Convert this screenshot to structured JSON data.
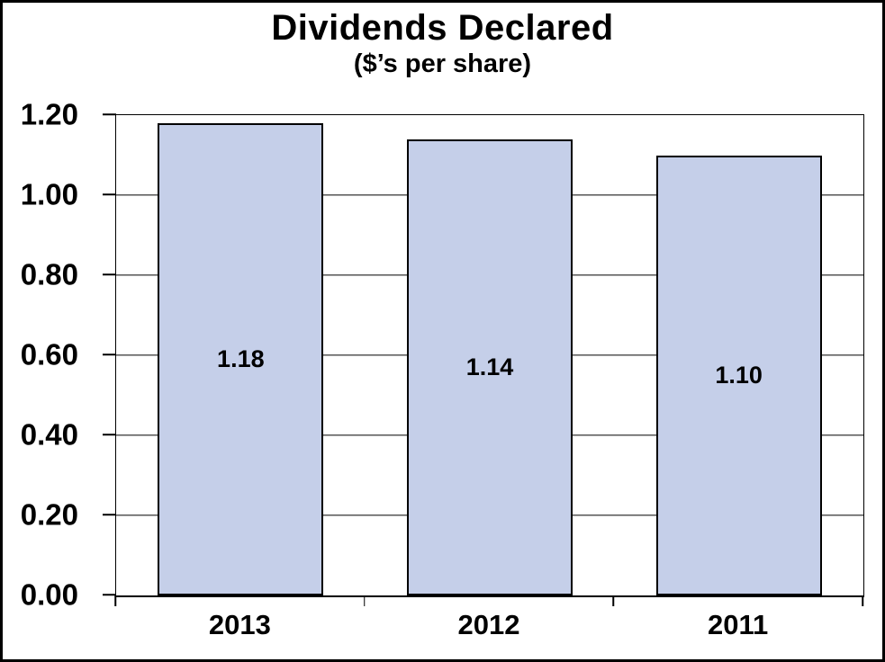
{
  "chart_data": {
    "type": "bar",
    "title": "Dividends Declared",
    "subtitle": "($’s per share)",
    "categories": [
      "2013",
      "2012",
      "2011"
    ],
    "values": [
      1.18,
      1.14,
      1.1
    ],
    "bar_labels": [
      "1.18",
      "1.14",
      "1.10"
    ],
    "xlabel": "",
    "ylabel": "",
    "ylim": [
      0.0,
      1.2
    ],
    "yticks": [
      1.2,
      1.0,
      0.8,
      0.6,
      0.4,
      0.2,
      0.0
    ],
    "ytick_labels": [
      "1.20",
      "1.00",
      "0.80",
      "0.60",
      "0.40",
      "0.20",
      "0.00"
    ],
    "grid": "horizontal-on",
    "legend": "none",
    "colors": {
      "bar_fill": "#C5CFE9",
      "bar_border": "#000000",
      "axis": "#000000",
      "text": "#000000",
      "background": "#FFFFFF"
    }
  }
}
